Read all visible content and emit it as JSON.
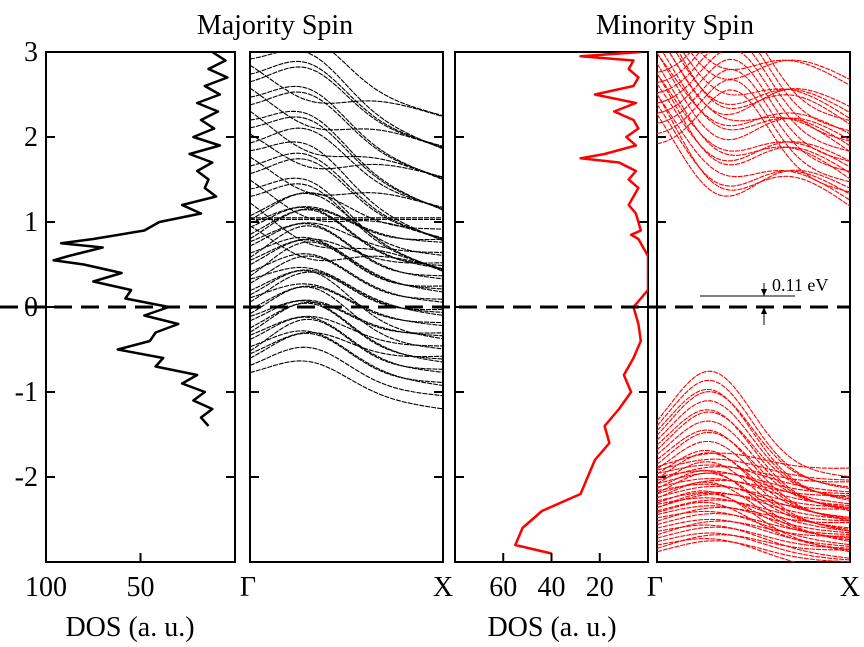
{
  "chart_data": {
    "type": "line",
    "ylim": [
      -3,
      3
    ],
    "yticks": [
      3,
      2,
      1,
      0,
      -1,
      -2
    ],
    "fermi_level": 0,
    "colors": {
      "majority": "#000000",
      "minority": "#ff0000",
      "axes": "#000000"
    },
    "titles": {
      "majority": "Majority Spin",
      "minority": "Minority Spin"
    },
    "k_labels": {
      "start": "Γ",
      "end": "X"
    },
    "dos_majority": {
      "xlabel": "DOS (a. u.)",
      "xlim": [
        100,
        0
      ],
      "xticks": [
        100,
        50
      ],
      "series": [
        {
          "energy": [
            3.0,
            2.9,
            2.8,
            2.7,
            2.6,
            2.5,
            2.4,
            2.3,
            2.2,
            2.1,
            2.0,
            1.9,
            1.8,
            1.7,
            1.6,
            1.5,
            1.4,
            1.3,
            1.2,
            1.1,
            1.0,
            0.9,
            0.8,
            0.75,
            0.7,
            0.6,
            0.55,
            0.5,
            0.4,
            0.3,
            0.2,
            0.1,
            0.0,
            -0.1,
            -0.2,
            -0.3,
            -0.4,
            -0.5,
            -0.6,
            -0.7,
            -0.8,
            -0.9,
            -1.0,
            -1.1,
            -1.2,
            -1.3,
            -1.4
          ],
          "value": [
            12,
            5,
            14,
            4,
            16,
            8,
            20,
            9,
            18,
            11,
            22,
            8,
            24,
            12,
            20,
            14,
            16,
            10,
            28,
            18,
            40,
            48,
            75,
            92,
            70,
            88,
            96,
            80,
            60,
            75,
            55,
            58,
            35,
            48,
            30,
            42,
            45,
            62,
            38,
            42,
            20,
            28,
            16,
            22,
            12,
            18,
            14
          ]
        }
      ]
    },
    "dos_minority": {
      "xlabel": "DOS (a. u.)",
      "xlim": [
        80,
        0
      ],
      "xticks": [
        60,
        40,
        20
      ],
      "series": [
        {
          "energy": [
            3.0,
            2.95,
            2.9,
            2.8,
            2.7,
            2.6,
            2.5,
            2.4,
            2.3,
            2.2,
            2.1,
            2.0,
            1.9,
            1.8,
            1.75,
            1.7,
            1.6,
            1.5,
            1.4,
            1.3,
            1.2,
            1.1,
            1.0,
            0.9,
            0.85,
            0.8,
            0.6,
            0.4,
            0.2,
            0.0,
            -0.2,
            -0.4,
            -0.6,
            -0.8,
            -1.0,
            -1.2,
            -1.4,
            -1.6,
            -1.8,
            -2.0,
            -2.2,
            -2.4,
            -2.6,
            -2.8,
            -2.9
          ],
          "value": [
            3,
            28,
            6,
            8,
            4,
            6,
            22,
            5,
            14,
            6,
            4,
            9,
            5,
            18,
            28,
            12,
            5,
            8,
            4,
            6,
            8,
            5,
            4,
            3,
            7,
            4,
            0,
            0,
            0,
            6,
            4,
            3,
            6,
            10,
            7,
            12,
            18,
            16,
            22,
            25,
            28,
            44,
            52,
            55,
            40
          ]
        }
      ]
    },
    "band_gap_annotation": "0.11 eV",
    "band_gap_value": 0.11
  }
}
